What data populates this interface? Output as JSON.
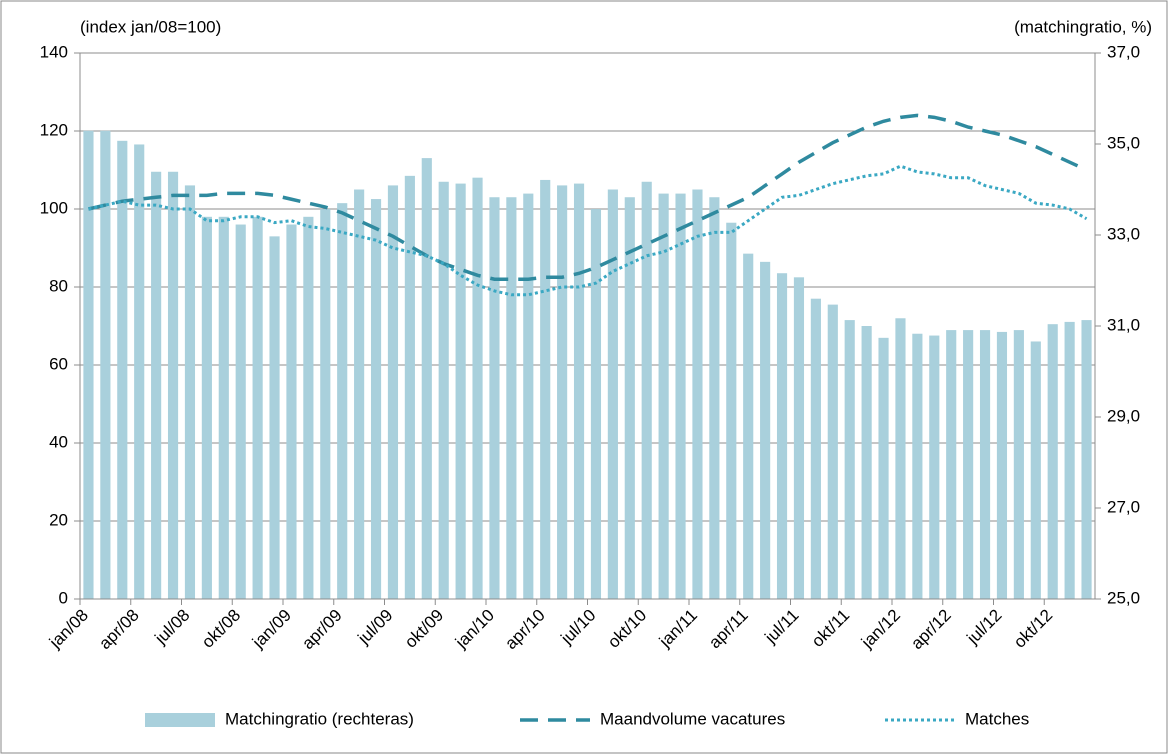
{
  "chart_data": {
    "type": "combo",
    "y_label": "(index jan/08=100)",
    "y2_label": "(matchingratio, %)",
    "categories": [
      "jan/08",
      null,
      null,
      "apr/08",
      null,
      null,
      "jul/08",
      null,
      null,
      "okt/08",
      null,
      null,
      "jan/09",
      null,
      null,
      "apr/09",
      null,
      null,
      "jul/09",
      null,
      null,
      "okt/09",
      null,
      null,
      "jan/10",
      null,
      null,
      "apr/10",
      null,
      null,
      "jul/10",
      null,
      null,
      "okt/10",
      null,
      null,
      "jan/11",
      null,
      null,
      "apr/11",
      null,
      null,
      "jul/11",
      null,
      null,
      "okt/11",
      null,
      null,
      "jan/12",
      null,
      null,
      "apr/12",
      null,
      null,
      "jul/12",
      null,
      null,
      "okt/12",
      null,
      null
    ],
    "ylim": [
      0,
      140
    ],
    "yticks": [
      0,
      20,
      40,
      60,
      80,
      100,
      120,
      140
    ],
    "y2lim": [
      25,
      37
    ],
    "y2ticks": [
      {
        "value": 25,
        "label": "25,0"
      },
      {
        "value": 27,
        "label": "27,0"
      },
      {
        "value": 29,
        "label": "29,0"
      },
      {
        "value": 31,
        "label": "31,0"
      },
      {
        "value": 33,
        "label": "33,0"
      },
      {
        "value": 35,
        "label": "35,0"
      },
      {
        "value": 37,
        "label": "37,0"
      }
    ],
    "grid": true,
    "legend": "bottom",
    "series": [
      {
        "name": "Matchingratio (rechteras)",
        "type": "bar",
        "axis": "y2",
        "color": "#a9d0dc",
        "values": [
          35.29,
          35.29,
          35.07,
          34.99,
          34.39,
          34.39,
          34.09,
          33.4,
          33.4,
          33.23,
          33.4,
          32.97,
          33.23,
          33.4,
          33.57,
          33.7,
          34.0,
          33.79,
          34.09,
          34.3,
          34.69,
          34.17,
          34.13,
          34.26,
          33.83,
          33.83,
          33.91,
          34.21,
          34.09,
          34.13,
          33.57,
          34.0,
          33.83,
          34.17,
          33.91,
          33.91,
          34.0,
          33.83,
          33.27,
          32.59,
          32.41,
          32.16,
          32.07,
          31.6,
          31.47,
          31.13,
          31.0,
          30.74,
          31.17,
          30.83,
          30.79,
          30.91,
          30.91,
          30.91,
          30.87,
          30.91,
          30.66,
          31.04,
          31.09,
          31.13
        ]
      },
      {
        "name": "Maandvolume vacatures",
        "type": "line",
        "dash": "dashed",
        "color": "#2f8a9f",
        "values": [
          100,
          101,
          102,
          102.5,
          103,
          103.5,
          103.5,
          103.5,
          104,
          104,
          104,
          103.5,
          102.5,
          101.5,
          100.5,
          99,
          97,
          95,
          93,
          90.5,
          88,
          86,
          84.5,
          83,
          82,
          82,
          82,
          82.5,
          82.5,
          83.5,
          85,
          87,
          89,
          91,
          93,
          95,
          97,
          99,
          101,
          103,
          106,
          109,
          112,
          114.5,
          117,
          119,
          121,
          122.5,
          123.5,
          124,
          123.5,
          122.5,
          121,
          120,
          119,
          117.5,
          116,
          114,
          112,
          110
        ]
      },
      {
        "name": "Matches",
        "type": "line",
        "dash": "dotted",
        "color": "#3aa8c3",
        "values": [
          100,
          101,
          102,
          101,
          101,
          100,
          100,
          97,
          97,
          98,
          98,
          96.5,
          97,
          95.5,
          95,
          94,
          93,
          92,
          90,
          89,
          88,
          86,
          83,
          80.5,
          79,
          78,
          78,
          79,
          80,
          80,
          81,
          84,
          86,
          88,
          89,
          91,
          93,
          94,
          94,
          97,
          100,
          103,
          103.5,
          105,
          106.5,
          107.5,
          108.5,
          109,
          111,
          109.5,
          109,
          108,
          108,
          106,
          105,
          104,
          101.5,
          101,
          100,
          97.5
        ]
      }
    ]
  }
}
